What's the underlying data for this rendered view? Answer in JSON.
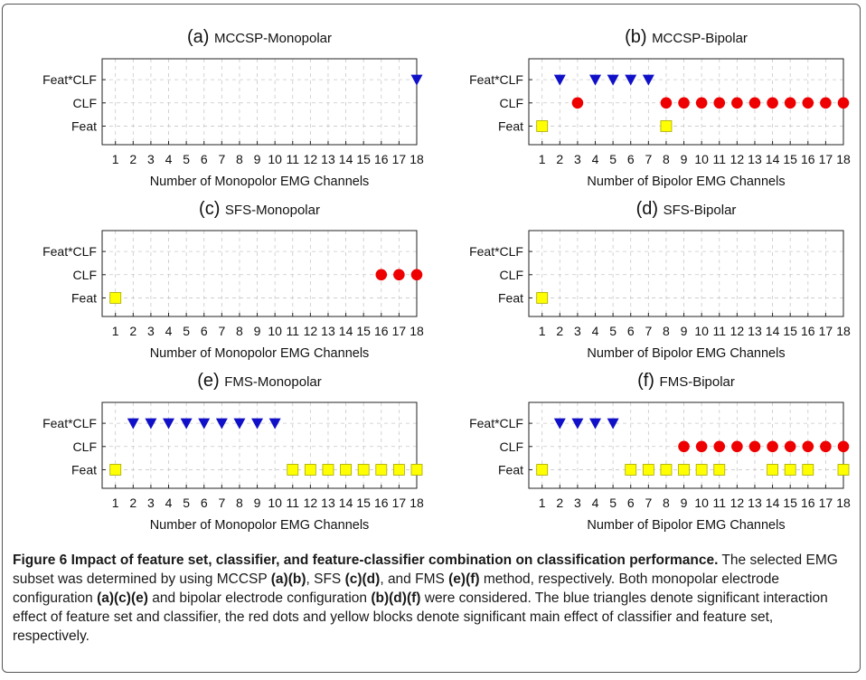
{
  "figure": {
    "y_categories": [
      "Feat",
      "CLF",
      "Feat*CLF"
    ],
    "colors": {
      "triangle": "#1010c8",
      "dot": "#ee0000",
      "square": "#ffff00",
      "square_edge": "#a8a800"
    },
    "panels": [
      {
        "label": "(a)",
        "title": "MCCSP-Monopolar",
        "xlabel": "Number of Monopolor EMG Channels",
        "feat": [],
        "clf": [],
        "featclf": [
          18
        ]
      },
      {
        "label": "(b)",
        "title": "MCCSP-Bipolar",
        "xlabel": "Number of Bipolor EMG Channels",
        "feat": [
          1,
          8
        ],
        "clf": [
          3,
          8,
          9,
          10,
          11,
          12,
          13,
          14,
          15,
          16,
          17,
          18
        ],
        "featclf": [
          2,
          4,
          5,
          6,
          7
        ]
      },
      {
        "label": "(c)",
        "title": "SFS-Monopolar",
        "xlabel": "Number of Monopolor EMG Channels",
        "feat": [
          1
        ],
        "clf": [
          16,
          17,
          18
        ],
        "featclf": []
      },
      {
        "label": "(d)",
        "title": "SFS-Bipolar",
        "xlabel": "Number of Bipolor EMG Channels",
        "feat": [
          1
        ],
        "clf": [],
        "featclf": []
      },
      {
        "label": "(e)",
        "title": "FMS-Monopolar",
        "xlabel": "Number of Monopolor EMG Channels",
        "feat": [
          1,
          11,
          12,
          13,
          14,
          15,
          16,
          17,
          18
        ],
        "clf": [],
        "featclf": [
          2,
          3,
          4,
          5,
          6,
          7,
          8,
          9,
          10
        ]
      },
      {
        "label": "(f)",
        "title": "FMS-Bipolar",
        "xlabel": "Number of Bipolor EMG Channels",
        "feat": [
          1,
          6,
          7,
          8,
          9,
          10,
          11,
          14,
          15,
          16,
          18
        ],
        "clf": [
          9,
          10,
          11,
          12,
          13,
          14,
          15,
          16,
          17,
          18
        ],
        "featclf": [
          2,
          3,
          4,
          5
        ]
      }
    ]
  },
  "chart_data": [
    {
      "type": "scatter",
      "title": "(a) MCCSP-Monopolar",
      "xlabel": "Number of Monopolor EMG Channels",
      "xlim": [
        1,
        18
      ],
      "y_categories": [
        "Feat",
        "CLF",
        "Feat*CLF"
      ],
      "series": [
        {
          "name": "Feat",
          "x": []
        },
        {
          "name": "CLF",
          "x": []
        },
        {
          "name": "Feat*CLF",
          "x": [
            18
          ]
        }
      ]
    },
    {
      "type": "scatter",
      "title": "(b) MCCSP-Bipolar",
      "xlabel": "Number of Bipolor EMG Channels",
      "xlim": [
        1,
        18
      ],
      "y_categories": [
        "Feat",
        "CLF",
        "Feat*CLF"
      ],
      "series": [
        {
          "name": "Feat",
          "x": [
            1,
            8
          ]
        },
        {
          "name": "CLF",
          "x": [
            3,
            8,
            9,
            10,
            11,
            12,
            13,
            14,
            15,
            16,
            17,
            18
          ]
        },
        {
          "name": "Feat*CLF",
          "x": [
            2,
            4,
            5,
            6,
            7
          ]
        }
      ]
    },
    {
      "type": "scatter",
      "title": "(c) SFS-Monopolar",
      "xlabel": "Number of Monopolor EMG Channels",
      "xlim": [
        1,
        18
      ],
      "y_categories": [
        "Feat",
        "CLF",
        "Feat*CLF"
      ],
      "series": [
        {
          "name": "Feat",
          "x": [
            1
          ]
        },
        {
          "name": "CLF",
          "x": [
            16,
            17,
            18
          ]
        },
        {
          "name": "Feat*CLF",
          "x": []
        }
      ]
    },
    {
      "type": "scatter",
      "title": "(d) SFS-Bipolar",
      "xlabel": "Number of Bipolor EMG Channels",
      "xlim": [
        1,
        18
      ],
      "y_categories": [
        "Feat",
        "CLF",
        "Feat*CLF"
      ],
      "series": [
        {
          "name": "Feat",
          "x": [
            1
          ]
        },
        {
          "name": "CLF",
          "x": []
        },
        {
          "name": "Feat*CLF",
          "x": []
        }
      ]
    },
    {
      "type": "scatter",
      "title": "(e) FMS-Monopolar",
      "xlabel": "Number of Monopolor EMG Channels",
      "xlim": [
        1,
        18
      ],
      "y_categories": [
        "Feat",
        "CLF",
        "Feat*CLF"
      ],
      "series": [
        {
          "name": "Feat",
          "x": [
            1,
            11,
            12,
            13,
            14,
            15,
            16,
            17,
            18
          ]
        },
        {
          "name": "CLF",
          "x": []
        },
        {
          "name": "Feat*CLF",
          "x": [
            2,
            3,
            4,
            5,
            6,
            7,
            8,
            9,
            10
          ]
        }
      ]
    },
    {
      "type": "scatter",
      "title": "(f) FMS-Bipolar",
      "xlabel": "Number of Bipolor EMG Channels",
      "xlim": [
        1,
        18
      ],
      "y_categories": [
        "Feat",
        "CLF",
        "Feat*CLF"
      ],
      "series": [
        {
          "name": "Feat",
          "x": [
            1,
            6,
            7,
            8,
            9,
            10,
            11,
            14,
            15,
            16,
            18
          ]
        },
        {
          "name": "CLF",
          "x": [
            9,
            10,
            11,
            12,
            13,
            14,
            15,
            16,
            17,
            18
          ]
        },
        {
          "name": "Feat*CLF",
          "x": [
            2,
            3,
            4,
            5
          ]
        }
      ]
    }
  ],
  "caption": {
    "heading": "Figure 6 Impact of feature set, classifier, and feature-classifier combination on classification performance.",
    "t1": " The selected EMG subset was determined by using MCCSP ",
    "b1": "(a)(b)",
    "t2": ", SFS ",
    "b2": "(c)(d)",
    "t3": ", and FMS ",
    "b3": "(e)(f)",
    "t4": " method, respectively. Both monopolar electrode configuration ",
    "b4": "(a)(c)(e)",
    "t5": " and bipolar electrode configuration ",
    "b5": "(b)(d)(f)",
    "t6": " were considered. The blue triangles denote significant interaction effect of feature set and classifier, the red dots and yellow blocks denote significant main effect of classifier and feature set, respectively."
  }
}
